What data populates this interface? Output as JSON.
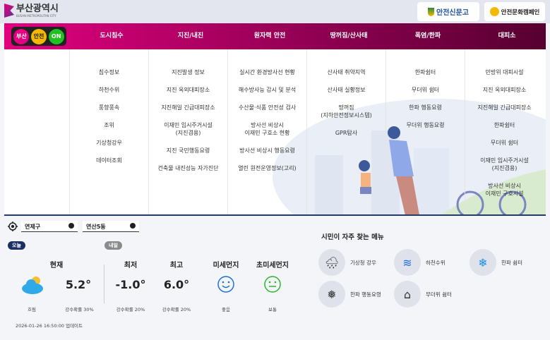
{
  "header": {
    "logo_ko": "부산광역시",
    "logo_en": "BUSAN METROPOLITAN CITY",
    "buttons": [
      "안전신문고",
      "안전문화캠페인"
    ]
  },
  "nav": {
    "lights": [
      "부산",
      "안전",
      "ON"
    ],
    "items": [
      "도시침수",
      "지진/내진",
      "원자력 안전",
      "땅꺼짐/산사태",
      "폭염/한파",
      "대피소"
    ]
  },
  "mega": [
    [
      "침수정보",
      "하천수위",
      "풍향풍속",
      "조위",
      "기상청강우",
      "데이터조회"
    ],
    [
      "지진발생 정보",
      "지진 옥외대피장소",
      "지진해일 긴급대피장소",
      "이재민 임시주거시설\n(지진겸용)",
      "지진 국민행동요령",
      "건축물 내진성능 자가진단"
    ],
    [
      "실시간 환경방사선 현황",
      "해수방사능 감시 및 분석",
      "수산물·식품 안전성 검사",
      "방사선 비상시\n이재민 구호소 현황",
      "방사선 비상시 행동요령",
      "열린 원전운영정보(고리)"
    ],
    [
      "산사태 취약지역",
      "산사태 실황정보",
      "땅꺼짐\n(지하안전정보시스템)",
      "GPR탐사"
    ],
    [
      "한파쉼터",
      "무더위 쉼터",
      "한파 행동요령",
      "무더위 행동요령"
    ],
    [
      "민방위 대피시설",
      "지진 옥외대피장소",
      "지진해일 긴급대피장소",
      "한파쉼터",
      "무더위 쉼터",
      "이재민 임시주거시설\n(지진겸용)",
      "방사선 비상시\n이재민 구호시설"
    ]
  ],
  "location": {
    "district": "연제구",
    "dong": "연산5동"
  },
  "weather": {
    "today": "오늘",
    "tomorrow": "내일",
    "current": {
      "label": "현재",
      "value": "5.2°",
      "condition": "흐림",
      "rain": "강수확률 30%",
      "icon": "partly-cloudy-icon"
    },
    "low": {
      "label": "최저",
      "value": "-1.0°",
      "rain": "강수확률 20%"
    },
    "high": {
      "label": "최고",
      "value": "6.0°",
      "rain": "강수확률 20%"
    },
    "pm10": {
      "label": "미세먼지",
      "status": "좋음",
      "color": "#1a6fe0"
    },
    "pm25": {
      "label": "초미세먼지",
      "status": "보통",
      "color": "#2db52d"
    },
    "updated": "2026-01-26 16:50:00 업데이트"
  },
  "quick": {
    "title": "시민이 자주 찾는 메뉴",
    "items": [
      {
        "label": "기상청 강우",
        "icon": "rain-gauge-icon"
      },
      {
        "label": "하천수위",
        "icon": "water-level-icon"
      },
      {
        "label": "한파 쉼터",
        "icon": "cold-shelter-icon"
      },
      {
        "label": "한파 행동요령",
        "icon": "thermometer-snow-icon"
      },
      {
        "label": "무더위 쉼터",
        "icon": "heat-shelter-icon"
      }
    ]
  }
}
